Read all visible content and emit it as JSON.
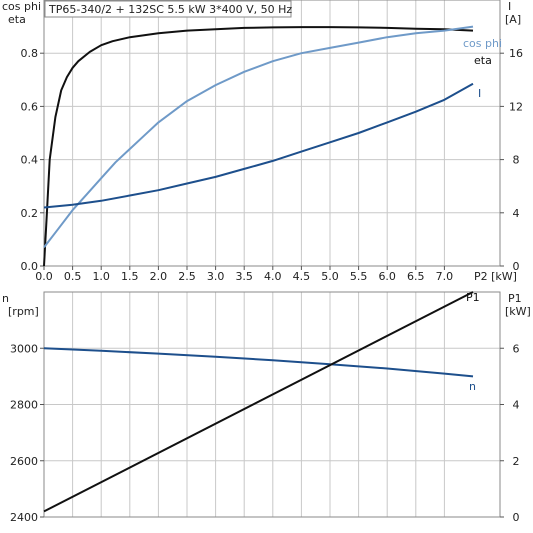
{
  "chart_data": [
    {
      "type": "line",
      "title": "TP65-340/2 + 132SC   5.5 kW   3*400 V, 50 Hz",
      "left_axis_label_1": "cos phi",
      "left_axis_label_2": "eta",
      "right_axis_label_1": "I",
      "right_axis_label_2": "[A]",
      "xlabel": "P2 [kW]",
      "xlim": [
        0,
        7.5
      ],
      "ylim_left": [
        0,
        1.0
      ],
      "ylim_right": [
        0,
        20
      ],
      "x_ticks": [
        "0.0",
        "0.5",
        "1.0",
        "1.5",
        "2.0",
        "2.5",
        "3.0",
        "3.5",
        "4.0",
        "4.5",
        "5.0",
        "5.5",
        "6.0",
        "6.5",
        "7.0"
      ],
      "y_left_ticks": [
        "0.0",
        "0.2",
        "0.4",
        "0.6",
        "0.8"
      ],
      "y_right_ticks": [
        "0",
        "4",
        "8",
        "12",
        "16"
      ],
      "series": [
        {
          "name": "eta",
          "axis": "left",
          "color": "#111111",
          "x": [
            0.0,
            0.05,
            0.1,
            0.2,
            0.3,
            0.4,
            0.5,
            0.6,
            0.8,
            1.0,
            1.2,
            1.5,
            2.0,
            2.5,
            3.0,
            3.5,
            4.0,
            4.5,
            5.0,
            5.5,
            6.0,
            6.5,
            7.0,
            7.5
          ],
          "y": [
            0.0,
            0.2,
            0.4,
            0.56,
            0.66,
            0.71,
            0.745,
            0.77,
            0.805,
            0.83,
            0.845,
            0.86,
            0.875,
            0.885,
            0.89,
            0.895,
            0.897,
            0.898,
            0.898,
            0.897,
            0.895,
            0.892,
            0.89,
            0.885
          ]
        },
        {
          "name": "cos phi",
          "axis": "left",
          "color": "#6f9ac8",
          "x": [
            0.0,
            0.25,
            0.5,
            0.75,
            1.0,
            1.25,
            1.5,
            1.75,
            2.0,
            2.5,
            3.0,
            3.5,
            4.0,
            4.5,
            5.0,
            5.5,
            6.0,
            6.5,
            7.0,
            7.5
          ],
          "y": [
            0.07,
            0.14,
            0.21,
            0.27,
            0.33,
            0.39,
            0.44,
            0.49,
            0.54,
            0.62,
            0.68,
            0.73,
            0.77,
            0.8,
            0.82,
            0.84,
            0.86,
            0.875,
            0.885,
            0.9
          ]
        },
        {
          "name": "I",
          "axis": "right",
          "color": "#1d4f8c",
          "x": [
            0.0,
            0.5,
            1.0,
            1.5,
            2.0,
            2.5,
            3.0,
            3.5,
            4.0,
            4.5,
            5.0,
            5.5,
            6.0,
            6.5,
            7.0,
            7.5
          ],
          "y": [
            4.4,
            4.6,
            4.9,
            5.3,
            5.7,
            6.2,
            6.7,
            7.3,
            7.9,
            8.6,
            9.3,
            10.0,
            10.8,
            11.6,
            12.5,
            13.7
          ]
        }
      ]
    },
    {
      "type": "line",
      "left_axis_label_1": "n",
      "left_axis_label_2": "[rpm]",
      "right_axis_label_1": "P1",
      "right_axis_label_2": "[kW]",
      "xlim": [
        0,
        7.5
      ],
      "ylim_left": [
        2400,
        3200
      ],
      "ylim_right": [
        0,
        8
      ],
      "y_left_ticks": [
        "2400",
        "2600",
        "2800",
        "3000"
      ],
      "y_right_ticks": [
        "0",
        "2",
        "4",
        "6"
      ],
      "series": [
        {
          "name": "n",
          "axis": "left",
          "color": "#1d4f8c",
          "x": [
            0.0,
            1.0,
            2.0,
            3.0,
            4.0,
            5.0,
            6.0,
            7.0,
            7.5
          ],
          "y": [
            3000,
            2991,
            2981,
            2970,
            2957,
            2943,
            2928,
            2910,
            2900
          ]
        },
        {
          "name": "P1",
          "axis": "right",
          "color": "#111111",
          "x": [
            0.0,
            7.5
          ],
          "y": [
            0.2,
            8.5
          ]
        }
      ]
    }
  ]
}
